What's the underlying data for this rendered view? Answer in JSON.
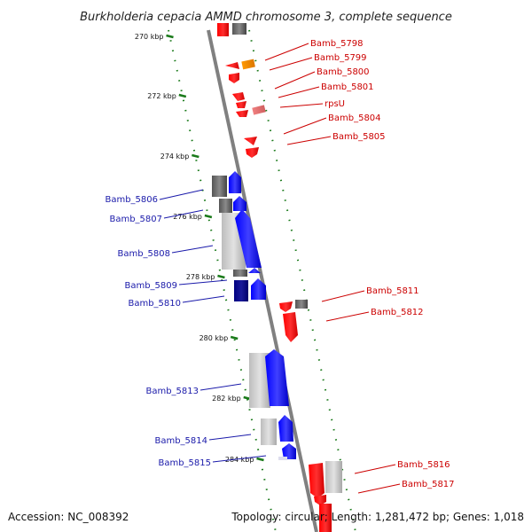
{
  "title": "Burkholderia cepacia AMMD chromosome 3, complete sequence",
  "footer": {
    "accession": "Accession: NC_008392",
    "summary": "Topology: circular; Length: 1,281,472 bp; Genes: 1,018"
  },
  "colors": {
    "forward_label": "#1a1aaa",
    "reverse_label": "#cc0000",
    "tick": "#1a7a1a",
    "axis": "#808080"
  },
  "kbp_ticks": [
    {
      "label": "270 kbp"
    },
    {
      "label": "272 kbp"
    },
    {
      "label": "274 kbp"
    },
    {
      "label": "276 kbp"
    },
    {
      "label": "278 kbp"
    },
    {
      "label": "280 kbp"
    },
    {
      "label": "282 kbp"
    },
    {
      "label": "284 kbp"
    }
  ],
  "forward_genes": [
    {
      "name": "Bamb_5806"
    },
    {
      "name": "Bamb_5807"
    },
    {
      "name": "Bamb_5808"
    },
    {
      "name": "Bamb_5809"
    },
    {
      "name": "Bamb_5810"
    },
    {
      "name": "Bamb_5813"
    },
    {
      "name": "Bamb_5814"
    },
    {
      "name": "Bamb_5815"
    }
  ],
  "reverse_genes": [
    {
      "name": "Bamb_5798"
    },
    {
      "name": "Bamb_5799"
    },
    {
      "name": "Bamb_5800"
    },
    {
      "name": "Bamb_5801"
    },
    {
      "name": "rpsU"
    },
    {
      "name": "Bamb_5804"
    },
    {
      "name": "Bamb_5805"
    },
    {
      "name": "Bamb_5811"
    },
    {
      "name": "Bamb_5812"
    },
    {
      "name": "Bamb_5816"
    },
    {
      "name": "Bamb_5817"
    }
  ]
}
